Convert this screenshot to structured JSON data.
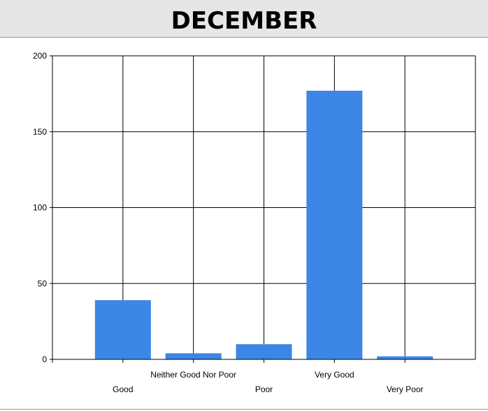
{
  "title": "DECEMBER",
  "colors": {
    "bar": "#3c87e6",
    "grid": "#000000",
    "title_bg": "#e6e6e6"
  },
  "chart_data": {
    "type": "bar",
    "title": "DECEMBER",
    "categories": [
      "Good",
      "Neither Good Nor Poor",
      "Poor",
      "Very Good",
      "Very Poor"
    ],
    "values": [
      39,
      4,
      10,
      177,
      2
    ],
    "yticks": [
      0,
      50,
      100,
      150,
      200
    ],
    "ylim": [
      0,
      200
    ],
    "xlabel": "",
    "ylabel": "",
    "grid": true,
    "legend": "none",
    "label_stagger": [
      "low",
      "high",
      "low",
      "high",
      "low"
    ]
  }
}
